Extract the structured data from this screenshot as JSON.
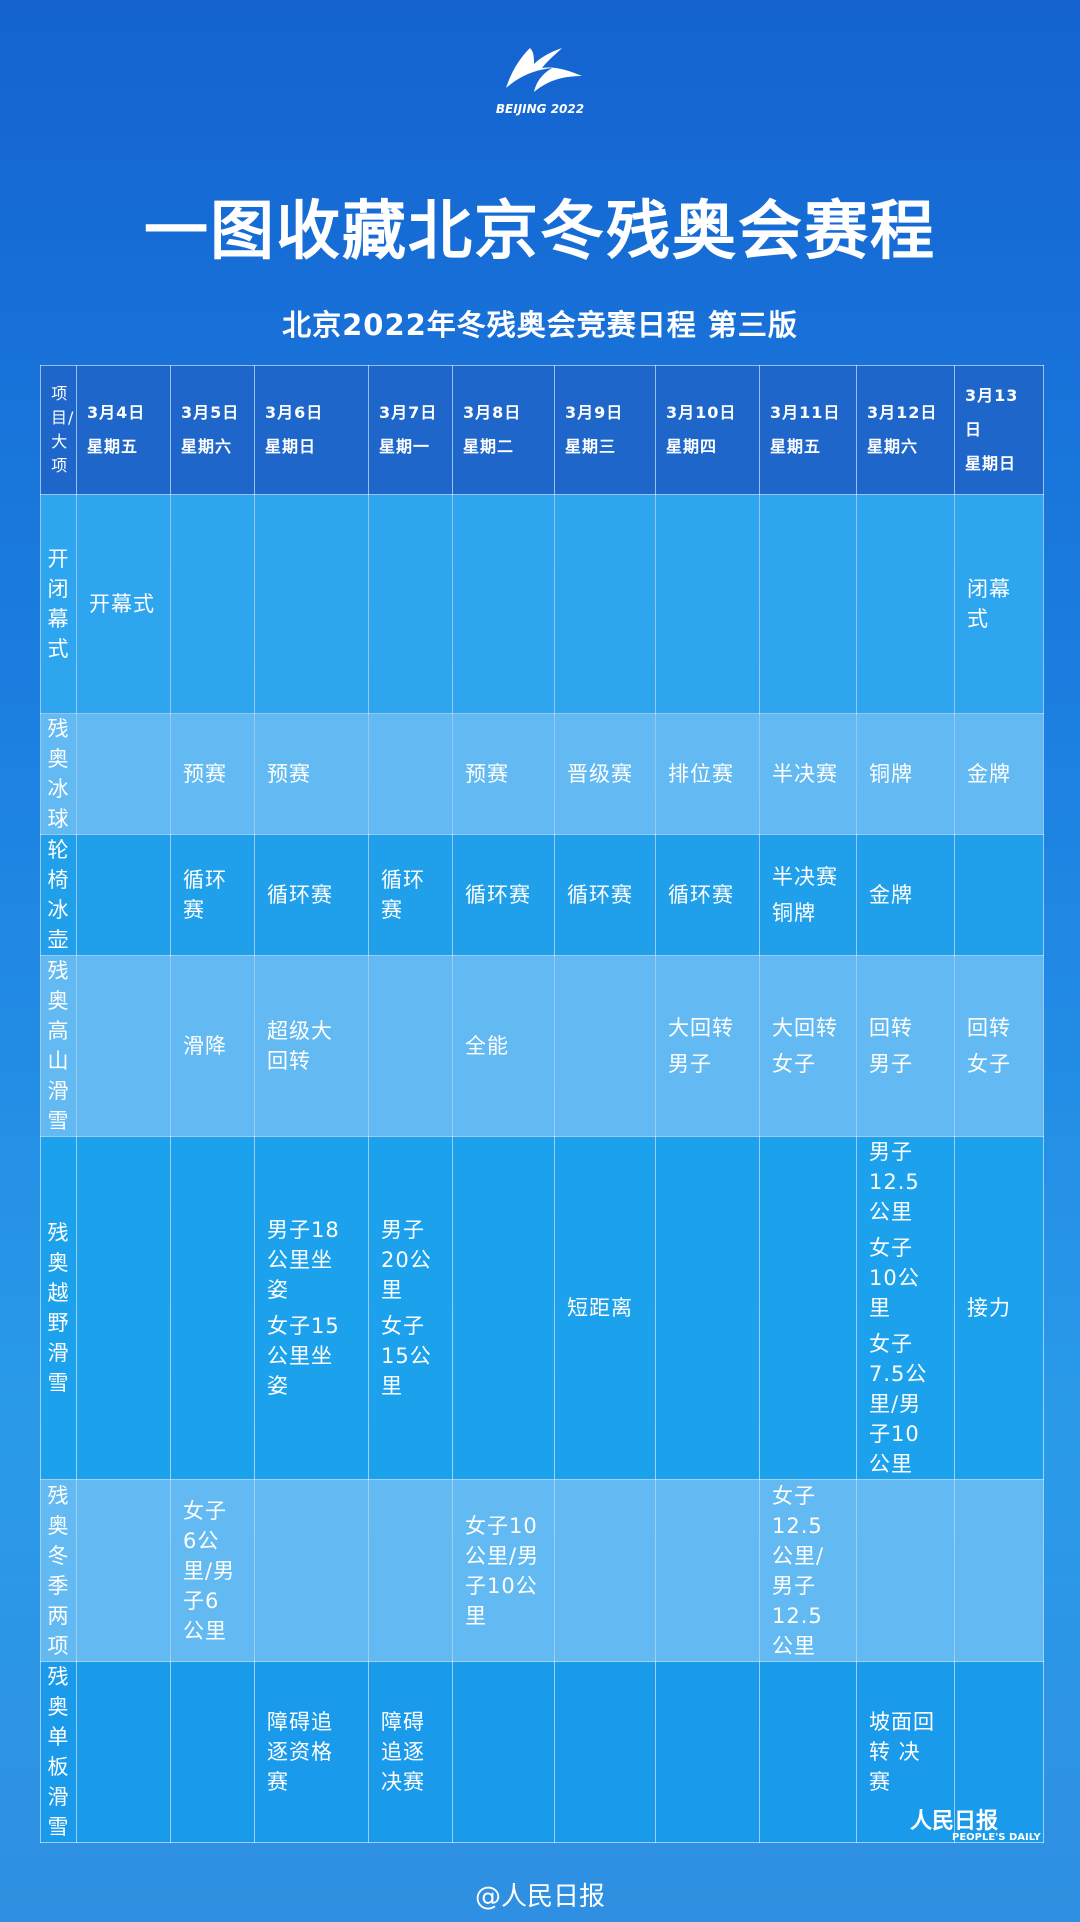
{
  "header": {
    "logo_text": "BEIJING 2022",
    "title": "一图收藏北京冬残奥会赛程",
    "subtitle": "北京2022年冬残奥会竞赛日程 第三版"
  },
  "table": {
    "corner": "项目/大项",
    "columns": [
      {
        "date": "3月4日",
        "weekday": "星期五"
      },
      {
        "date": "3月5日",
        "weekday": "星期六"
      },
      {
        "date": "3月6日",
        "weekday": "星期日"
      },
      {
        "date": "3月7日",
        "weekday": "星期一"
      },
      {
        "date": "3月8日",
        "weekday": "星期二"
      },
      {
        "date": "3月9日",
        "weekday": "星期三"
      },
      {
        "date": "3月10日",
        "weekday": "星期四"
      },
      {
        "date": "3月11日",
        "weekday": "星期五"
      },
      {
        "date": "3月12日",
        "weekday": "星期六"
      },
      {
        "date": "3月13日",
        "weekday": "星期日"
      }
    ],
    "rows": [
      {
        "label": "开闭幕式",
        "cells": [
          [
            "开幕式"
          ],
          [],
          [],
          [],
          [],
          [],
          [],
          [],
          [],
          [
            "闭幕式"
          ]
        ]
      },
      {
        "label": "残奥冰球",
        "cells": [
          [],
          [
            "预赛"
          ],
          [
            "预赛"
          ],
          [],
          [
            "预赛"
          ],
          [
            "晋级赛"
          ],
          [
            "排位赛"
          ],
          [
            "半决赛"
          ],
          [
            "铜牌"
          ],
          [
            "金牌"
          ]
        ]
      },
      {
        "label": "轮椅冰壶",
        "cells": [
          [],
          [
            "循环赛"
          ],
          [
            "循环赛"
          ],
          [
            "循环赛"
          ],
          [
            "循环赛"
          ],
          [
            "循环赛"
          ],
          [
            "循环赛"
          ],
          [
            "半决赛",
            "铜牌"
          ],
          [
            "金牌"
          ],
          []
        ]
      },
      {
        "label": "残奥高山滑雪",
        "cells": [
          [],
          [
            "滑降"
          ],
          [
            "超级大回转"
          ],
          [],
          [
            "全能"
          ],
          [],
          [
            "大回转",
            "男子"
          ],
          [
            "大回转",
            "女子"
          ],
          [
            "回转",
            "男子"
          ],
          [
            "回转",
            "女子"
          ]
        ]
      },
      {
        "label": "残奥越野滑雪",
        "cells": [
          [],
          [],
          [
            "男子18公里坐姿",
            "女子15公里坐姿"
          ],
          [
            "男子20公里",
            "女子15公里"
          ],
          [],
          [
            "短距离"
          ],
          [],
          [],
          [
            "男子12.5公里",
            "女子10公里",
            "女子7.5公里/男子10公里"
          ],
          [
            "接力"
          ]
        ]
      },
      {
        "label": "残奥冬季两项",
        "cells": [
          [],
          [
            "女子6公里/男子6公里"
          ],
          [],
          [],
          [
            "女子10公里/男子10公里"
          ],
          [],
          [],
          [
            "女子12.5公里/男子12.5公里"
          ],
          [],
          []
        ]
      },
      {
        "label": "残奥单板滑雪",
        "cells": [
          [],
          [],
          [
            "障碍追逐资格赛"
          ],
          [
            "障碍追逐决赛"
          ],
          [],
          [],
          [],
          [],
          [
            "坡面回转 决赛"
          ],
          []
        ]
      }
    ]
  },
  "footer": {
    "brand": "人民日报",
    "brand_en": "PEOPLE'S DAILY",
    "watermark": "@人民日报"
  }
}
